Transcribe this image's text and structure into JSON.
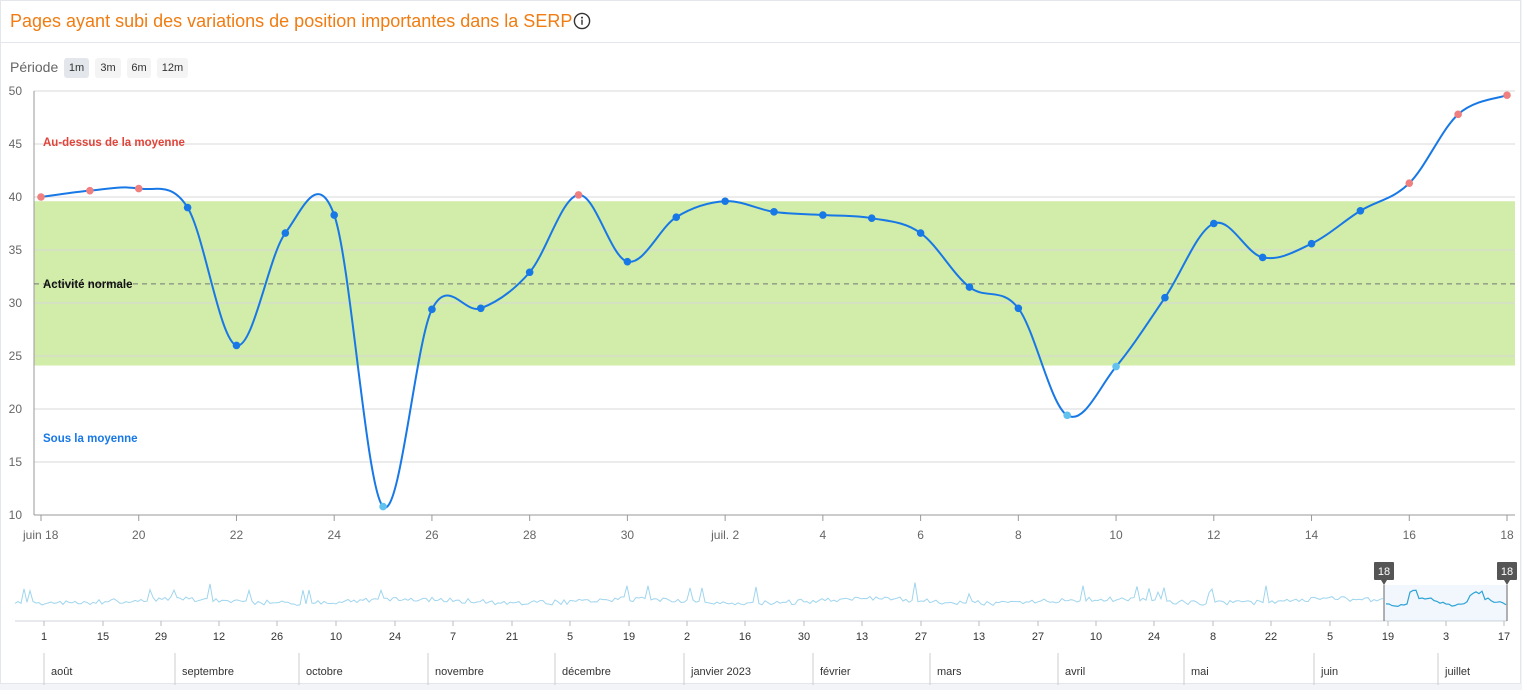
{
  "title": "Pages ayant subi des variations de position importantes dans la SERP",
  "period": {
    "label": "Période",
    "options": [
      "1m",
      "3m",
      "6m",
      "12m"
    ],
    "selected": "1m"
  },
  "icons": {
    "info": "info-circle-icon"
  },
  "colors": {
    "title": "#f07c12",
    "line": "#1778e6",
    "band": "#d2ecaa",
    "above": "#f08080",
    "normal": "#1778e6",
    "below": "#62c2ef",
    "above_label": "#e0443a",
    "below_label": "#1778e6"
  },
  "chart_data": {
    "type": "line",
    "x": [
      "2023-06-18",
      "2023-06-19",
      "2023-06-20",
      "2023-06-21",
      "2023-06-22",
      "2023-06-23",
      "2023-06-24",
      "2023-06-25",
      "2023-06-26",
      "2023-06-27",
      "2023-06-28",
      "2023-06-29",
      "2023-06-30",
      "2023-07-01",
      "2023-07-02",
      "2023-07-03",
      "2023-07-04",
      "2023-07-05",
      "2023-07-06",
      "2023-07-07",
      "2023-07-08",
      "2023-07-09",
      "2023-07-10",
      "2023-07-11",
      "2023-07-12",
      "2023-07-13",
      "2023-07-14",
      "2023-07-15",
      "2023-07-16",
      "2023-07-17",
      "2023-07-18"
    ],
    "values": [
      40,
      40.6,
      40.8,
      39,
      26,
      36.6,
      38.3,
      10.8,
      29.4,
      29.5,
      32.9,
      40.2,
      33.9,
      38.1,
      39.6,
      38.6,
      38.3,
      38,
      36.6,
      31.5,
      29.5,
      19.4,
      24,
      30.5,
      37.5,
      34.3,
      35.6,
      38.7,
      41.3,
      47.8,
      49.6
    ],
    "ylim": [
      10,
      50
    ],
    "yticks": [
      10,
      15,
      20,
      25,
      30,
      35,
      40,
      45,
      50
    ],
    "xtick_labels": [
      "juin 18",
      "20",
      "22",
      "24",
      "26",
      "28",
      "30",
      "juil. 2",
      "4",
      "6",
      "8",
      "10",
      "12",
      "14",
      "16",
      "18"
    ],
    "band": {
      "low": 24.1,
      "high": 39.6,
      "mean": 31.8
    },
    "annotations": {
      "above": "Au-dessus de la moyenne",
      "normal": "Activité normale",
      "below": "Sous la moyenne"
    }
  },
  "navigator": {
    "day_labels": [
      "1",
      "15",
      "29",
      "12",
      "26",
      "10",
      "24",
      "7",
      "21",
      "5",
      "19",
      "2",
      "16",
      "30",
      "13",
      "27",
      "13",
      "27",
      "10",
      "24",
      "8",
      "22",
      "5",
      "19",
      "3",
      "17"
    ],
    "month_labels": [
      "août",
      "septembre",
      "octobre",
      "novembre",
      "décembre",
      "janvier 2023",
      "février",
      "mars",
      "avril",
      "mai",
      "juin",
      "juillet"
    ],
    "range_start_label": "18",
    "range_end_label": "18"
  }
}
